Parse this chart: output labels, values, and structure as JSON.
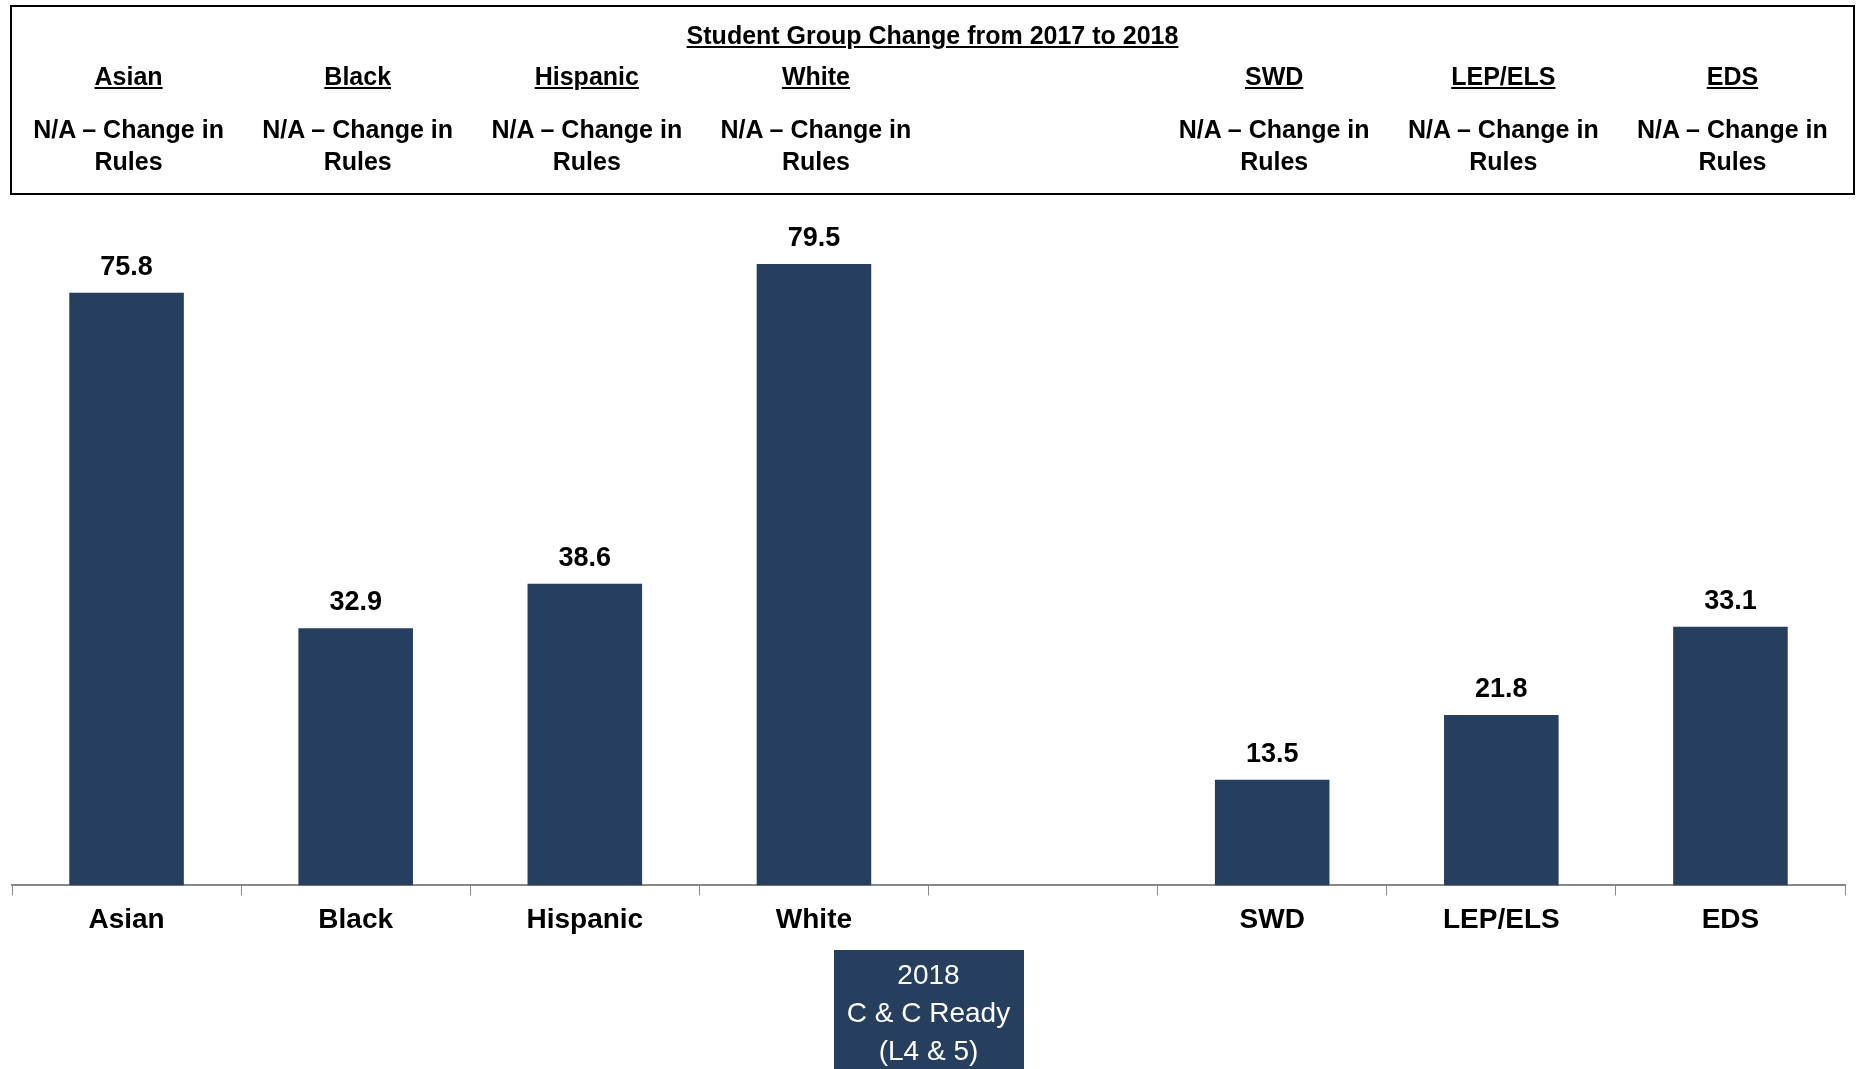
{
  "chart_data": {
    "type": "bar",
    "title": "Student Group Change from 2017 to 2018",
    "categories": [
      "Asian",
      "Black",
      "Hispanic",
      "White",
      null,
      "SWD",
      "LEP/ELS",
      "EDS"
    ],
    "series": [
      {
        "name": "2018\nC & C Ready\n(L4 & 5)",
        "color": "#263f5f",
        "values": [
          75.8,
          32.9,
          38.6,
          79.5,
          null,
          13.5,
          21.8,
          33.1
        ]
      }
    ],
    "annotations": [
      "Asian",
      "N/A – Change in Rules",
      "Black",
      "N/A – Change in Rules",
      "Hispanic",
      "N/A – Change in Rules",
      "White",
      "N/A – Change in Rules",
      "SWD",
      "N/A – Change in Rules",
      "LEP/ELS",
      "N/A – Change in Rules",
      "EDS",
      "N/A – Change in Rules"
    ],
    "data_labels": true,
    "legend": "bottom",
    "grid": false
  }
}
